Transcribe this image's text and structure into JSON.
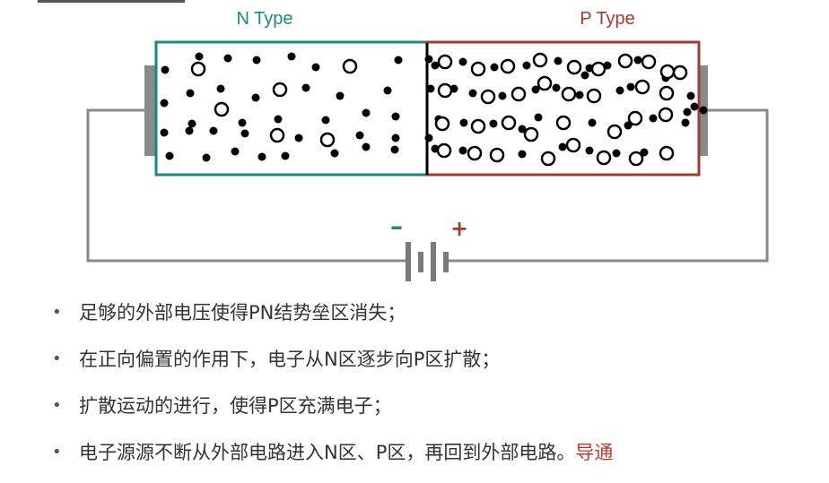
{
  "diagram": {
    "n_region": {
      "label": "N Type",
      "color": "#1a8a7a"
    },
    "p_region": {
      "label": "P Type",
      "color": "#a33b2e"
    },
    "battery": {
      "minus": "–",
      "plus": "+",
      "minus_color": "#1a8a7a",
      "plus_color": "#a33b2e"
    },
    "electron_color": "#000000",
    "wire_color": "#8a8a8a"
  },
  "bullets": [
    {
      "text": "足够的外部电压使得PN结势垒区消失；"
    },
    {
      "text": "在正向偏置的作用下，电子从N区逐步向P区扩散；"
    },
    {
      "text": "扩散运动的进行，使得P区充满电子；"
    },
    {
      "text": "电子源源不断从外部电路进入N区、P区，再回到外部电路。",
      "highlight": "导通"
    }
  ]
}
